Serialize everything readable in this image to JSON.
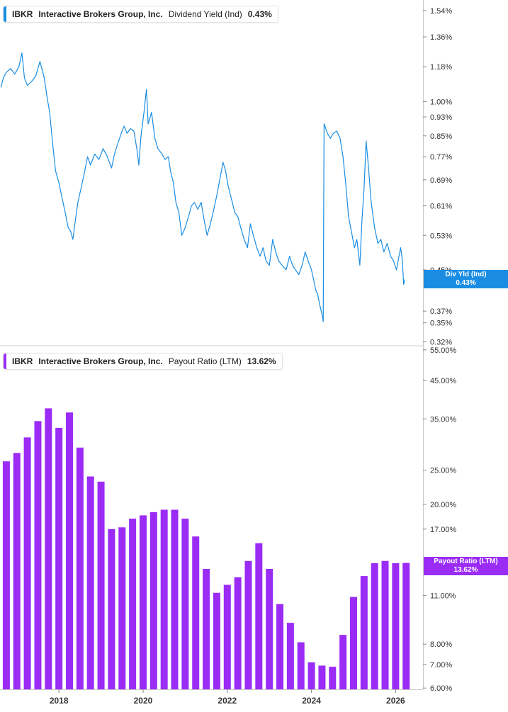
{
  "chart_data": [
    {
      "type": "line",
      "ticker": "IBKR",
      "company": "Interactive Brokers Group, Inc.",
      "metric": "Dividend Yield (Ind)",
      "current_value": "0.43%",
      "callout_label": "Div Yld (Ind)",
      "callout_value": "0.43%",
      "color": "#1a8de3",
      "y_scale": "log",
      "ylim": [
        0.315,
        1.62
      ],
      "y_ticks": [
        {
          "value": 1.54,
          "label": "1.54%"
        },
        {
          "value": 1.36,
          "label": "1.36%"
        },
        {
          "value": 1.18,
          "label": "1.18%"
        },
        {
          "value": 1.0,
          "label": "1.00%"
        },
        {
          "value": 0.93,
          "label": "0.93%"
        },
        {
          "value": 0.85,
          "label": "0.85%"
        },
        {
          "value": 0.77,
          "label": "0.77%"
        },
        {
          "value": 0.69,
          "label": "0.69%"
        },
        {
          "value": 0.61,
          "label": "0.61%"
        },
        {
          "value": 0.53,
          "label": "0.53%"
        },
        {
          "value": 0.45,
          "label": "0.45%"
        },
        {
          "value": 0.37,
          "label": "0.37%"
        },
        {
          "value": 0.35,
          "label": "0.35%"
        },
        {
          "value": 0.32,
          "label": "0.32%"
        }
      ],
      "xlim": [
        2016.6,
        2026.65
      ],
      "series": [
        {
          "values": [
            [
              2016.62,
              1.07
            ],
            [
              2016.68,
              1.12
            ],
            [
              2016.75,
              1.15
            ],
            [
              2016.85,
              1.17
            ],
            [
              2016.95,
              1.14
            ],
            [
              2017.05,
              1.18
            ],
            [
              2017.12,
              1.26
            ],
            [
              2017.18,
              1.12
            ],
            [
              2017.25,
              1.08
            ],
            [
              2017.35,
              1.1
            ],
            [
              2017.45,
              1.13
            ],
            [
              2017.55,
              1.21
            ],
            [
              2017.65,
              1.12
            ],
            [
              2017.72,
              1.02
            ],
            [
              2017.78,
              0.95
            ],
            [
              2017.85,
              0.82
            ],
            [
              2017.92,
              0.72
            ],
            [
              2018.0,
              0.68
            ],
            [
              2018.08,
              0.63
            ],
            [
              2018.15,
              0.59
            ],
            [
              2018.22,
              0.55
            ],
            [
              2018.28,
              0.54
            ],
            [
              2018.33,
              0.52
            ],
            [
              2018.38,
              0.56
            ],
            [
              2018.45,
              0.62
            ],
            [
              2018.52,
              0.66
            ],
            [
              2018.6,
              0.71
            ],
            [
              2018.68,
              0.77
            ],
            [
              2018.75,
              0.74
            ],
            [
              2018.85,
              0.78
            ],
            [
              2018.95,
              0.76
            ],
            [
              2019.05,
              0.8
            ],
            [
              2019.15,
              0.77
            ],
            [
              2019.25,
              0.73
            ],
            [
              2019.32,
              0.78
            ],
            [
              2019.4,
              0.82
            ],
            [
              2019.48,
              0.86
            ],
            [
              2019.55,
              0.89
            ],
            [
              2019.62,
              0.86
            ],
            [
              2019.7,
              0.88
            ],
            [
              2019.78,
              0.87
            ],
            [
              2019.85,
              0.8
            ],
            [
              2019.9,
              0.74
            ],
            [
              2019.95,
              0.85
            ],
            [
              2020.02,
              0.95
            ],
            [
              2020.08,
              1.06
            ],
            [
              2020.12,
              0.9
            ],
            [
              2020.2,
              0.95
            ],
            [
              2020.28,
              0.84
            ],
            [
              2020.35,
              0.8
            ],
            [
              2020.45,
              0.78
            ],
            [
              2020.52,
              0.76
            ],
            [
              2020.6,
              0.77
            ],
            [
              2020.65,
              0.72
            ],
            [
              2020.72,
              0.68
            ],
            [
              2020.78,
              0.62
            ],
            [
              2020.85,
              0.59
            ],
            [
              2020.92,
              0.53
            ],
            [
              2021.0,
              0.55
            ],
            [
              2021.08,
              0.58
            ],
            [
              2021.15,
              0.61
            ],
            [
              2021.22,
              0.62
            ],
            [
              2021.3,
              0.6
            ],
            [
              2021.38,
              0.62
            ],
            [
              2021.45,
              0.57
            ],
            [
              2021.52,
              0.53
            ],
            [
              2021.6,
              0.56
            ],
            [
              2021.68,
              0.6
            ],
            [
              2021.75,
              0.64
            ],
            [
              2021.82,
              0.69
            ],
            [
              2021.9,
              0.75
            ],
            [
              2021.96,
              0.72
            ],
            [
              2022.02,
              0.67
            ],
            [
              2022.1,
              0.63
            ],
            [
              2022.18,
              0.59
            ],
            [
              2022.25,
              0.58
            ],
            [
              2022.32,
              0.55
            ],
            [
              2022.4,
              0.52
            ],
            [
              2022.48,
              0.5
            ],
            [
              2022.55,
              0.56
            ],
            [
              2022.62,
              0.53
            ],
            [
              2022.7,
              0.5
            ],
            [
              2022.78,
              0.48
            ],
            [
              2022.85,
              0.5
            ],
            [
              2022.92,
              0.47
            ],
            [
              2023.0,
              0.46
            ],
            [
              2023.08,
              0.52
            ],
            [
              2023.15,
              0.49
            ],
            [
              2023.22,
              0.47
            ],
            [
              2023.3,
              0.46
            ],
            [
              2023.4,
              0.45
            ],
            [
              2023.48,
              0.48
            ],
            [
              2023.55,
              0.46
            ],
            [
              2023.62,
              0.45
            ],
            [
              2023.7,
              0.44
            ],
            [
              2023.78,
              0.46
            ],
            [
              2023.85,
              0.49
            ],
            [
              2023.92,
              0.47
            ],
            [
              2024.0,
              0.45
            ],
            [
              2024.05,
              0.43
            ],
            [
              2024.1,
              0.41
            ],
            [
              2024.15,
              0.4
            ],
            [
              2024.2,
              0.38
            ],
            [
              2024.25,
              0.365
            ],
            [
              2024.28,
              0.352
            ],
            [
              2024.3,
              0.9
            ],
            [
              2024.38,
              0.86
            ],
            [
              2024.45,
              0.84
            ],
            [
              2024.52,
              0.86
            ],
            [
              2024.6,
              0.87
            ],
            [
              2024.68,
              0.84
            ],
            [
              2024.75,
              0.77
            ],
            [
              2024.82,
              0.67
            ],
            [
              2024.88,
              0.58
            ],
            [
              2024.95,
              0.54
            ],
            [
              2025.02,
              0.5
            ],
            [
              2025.08,
              0.52
            ],
            [
              2025.15,
              0.46
            ],
            [
              2025.2,
              0.57
            ],
            [
              2025.25,
              0.66
            ],
            [
              2025.3,
              0.83
            ],
            [
              2025.35,
              0.74
            ],
            [
              2025.42,
              0.62
            ],
            [
              2025.5,
              0.55
            ],
            [
              2025.58,
              0.51
            ],
            [
              2025.65,
              0.52
            ],
            [
              2025.72,
              0.49
            ],
            [
              2025.8,
              0.51
            ],
            [
              2025.88,
              0.48
            ],
            [
              2025.95,
              0.47
            ],
            [
              2026.02,
              0.45
            ],
            [
              2026.08,
              0.48
            ],
            [
              2026.12,
              0.5
            ],
            [
              2026.16,
              0.47
            ],
            [
              2026.19,
              0.42
            ],
            [
              2026.22,
              0.43
            ]
          ]
        }
      ]
    },
    {
      "type": "bar",
      "ticker": "IBKR",
      "company": "Interactive Brokers Group, Inc.",
      "metric": "Payout Ratio (LTM)",
      "current_value": "13.62%",
      "callout_label": "Payout Ratio (LTM)",
      "callout_value": "13.62%",
      "color": "#9b2cf5",
      "y_scale": "log",
      "ylim": [
        5.95,
        56
      ],
      "y_ticks": [
        {
          "value": 55,
          "label": "55.00%"
        },
        {
          "value": 45,
          "label": "45.00%"
        },
        {
          "value": 35,
          "label": "35.00%"
        },
        {
          "value": 25,
          "label": "25.00%"
        },
        {
          "value": 20,
          "label": "20.00%"
        },
        {
          "value": 17,
          "label": "17.00%"
        },
        {
          "value": 11,
          "label": "11.00%"
        },
        {
          "value": 8,
          "label": "8.00%"
        },
        {
          "value": 7,
          "label": "7.00%"
        },
        {
          "value": 6,
          "label": "6.00%"
        }
      ],
      "xlim": [
        2016.6,
        2026.65
      ],
      "series": [
        {
          "values": [
            [
              2016.5,
              28.0
            ],
            [
              2016.75,
              26.5
            ],
            [
              2017.0,
              28.0
            ],
            [
              2017.25,
              31.0
            ],
            [
              2017.5,
              34.5
            ],
            [
              2017.75,
              37.5
            ],
            [
              2018.0,
              33.0
            ],
            [
              2018.25,
              36.5
            ],
            [
              2018.5,
              29.0
            ],
            [
              2018.75,
              24.0
            ],
            [
              2019.0,
              23.2
            ],
            [
              2019.25,
              17.0
            ],
            [
              2019.5,
              17.2
            ],
            [
              2019.75,
              18.2
            ],
            [
              2020.0,
              18.6
            ],
            [
              2020.25,
              19.0
            ],
            [
              2020.5,
              19.3
            ],
            [
              2020.75,
              19.3
            ],
            [
              2021.0,
              18.2
            ],
            [
              2021.25,
              16.2
            ],
            [
              2021.5,
              13.1
            ],
            [
              2021.75,
              11.2
            ],
            [
              2022.0,
              11.8
            ],
            [
              2022.25,
              12.4
            ],
            [
              2022.5,
              13.8
            ],
            [
              2022.75,
              15.5
            ],
            [
              2023.0,
              13.1
            ],
            [
              2023.25,
              10.4
            ],
            [
              2023.5,
              9.2
            ],
            [
              2023.75,
              8.1
            ],
            [
              2024.0,
              7.1
            ],
            [
              2024.25,
              6.95
            ],
            [
              2024.5,
              6.9
            ],
            [
              2024.75,
              8.5
            ],
            [
              2025.0,
              10.9
            ],
            [
              2025.25,
              12.5
            ],
            [
              2025.5,
              13.6
            ],
            [
              2025.75,
              13.8
            ],
            [
              2026.0,
              13.6
            ],
            [
              2026.25,
              13.62
            ]
          ]
        }
      ],
      "x_ticks": [
        2018,
        2020,
        2022,
        2024,
        2026
      ]
    }
  ]
}
